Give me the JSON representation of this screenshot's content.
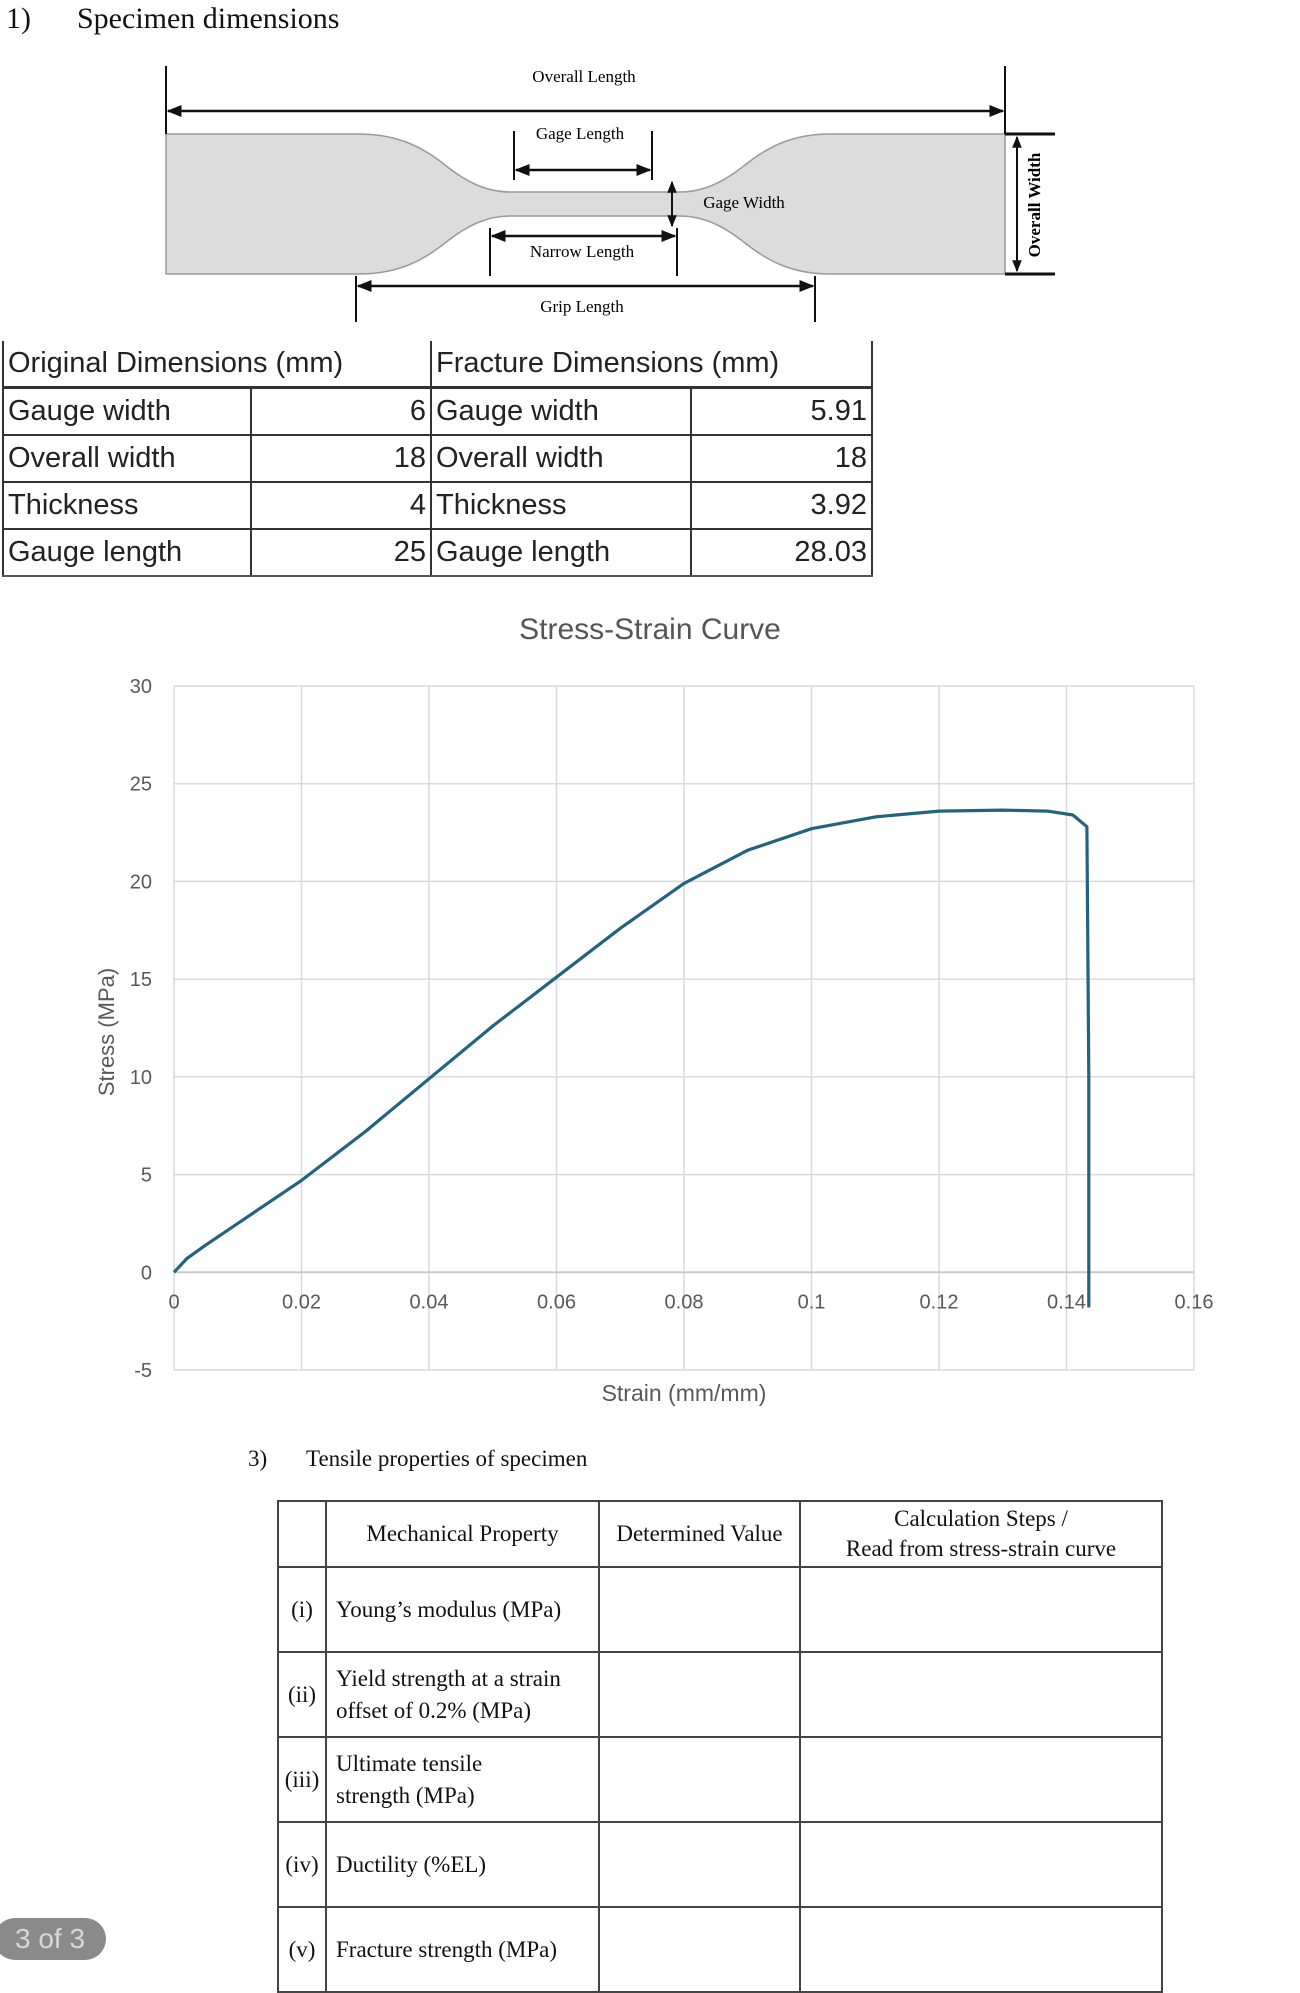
{
  "section1": {
    "number": "1)",
    "title": "Specimen dimensions"
  },
  "diagram": {
    "labels": {
      "overall_length": "Overall Length",
      "gage_length": "Gage Length",
      "gage_width": "Gage Width",
      "narrow_length": "Narrow Length",
      "grip_length": "Grip Length",
      "overall_width": "Overall Width"
    },
    "fill_color": "#dcdcdc"
  },
  "dimensions_table": {
    "original_header": "Original Dimensions (mm)",
    "fracture_header": "Fracture Dimensions (mm)",
    "rows": [
      {
        "label": "Gauge width",
        "original": "6",
        "fracture_label": "Gauge width",
        "fracture": "5.91"
      },
      {
        "label": "Overall width",
        "original": "18",
        "fracture_label": "Overall width",
        "fracture": "18"
      },
      {
        "label": "Thickness",
        "original": "4",
        "fracture_label": "Thickness",
        "fracture": "3.92"
      },
      {
        "label": "Gauge length",
        "original": "25",
        "fracture_label": "Gauge length",
        "fracture": "28.03"
      }
    ]
  },
  "chart_data": {
    "type": "line",
    "title": "Stress-Strain Curve",
    "xlabel": "Strain (mm/mm)",
    "ylabel": "Stress (MPa)",
    "xlim": [
      0,
      0.16
    ],
    "ylim": [
      -5,
      30
    ],
    "x_ticks": [
      "0",
      "0.02",
      "0.04",
      "0.06",
      "0.08",
      "0.1",
      "0.12",
      "0.14",
      "0.16"
    ],
    "y_ticks": [
      "30",
      "25",
      "20",
      "15",
      "10",
      "5",
      "0",
      "-5"
    ],
    "grid": true,
    "legend": "none",
    "series": [
      {
        "name": "Stress-Strain",
        "color": "#24637f",
        "x": [
          0,
          0.002,
          0.005,
          0.01,
          0.02,
          0.03,
          0.04,
          0.05,
          0.06,
          0.07,
          0.08,
          0.09,
          0.1,
          0.11,
          0.12,
          0.13,
          0.137,
          0.141,
          0.1432,
          0.1435,
          0.1435
        ],
        "y": [
          0,
          0.7,
          1.4,
          2.5,
          4.7,
          7.2,
          9.9,
          12.6,
          15.1,
          17.6,
          19.9,
          21.6,
          22.7,
          23.3,
          23.6,
          23.65,
          23.6,
          23.4,
          22.8,
          10.0,
          -1.8
        ]
      }
    ]
  },
  "section3": {
    "number": "3)",
    "title": "Tensile properties of specimen"
  },
  "properties_table": {
    "headers": {
      "index": "",
      "property": "Mechanical Property",
      "value": "Determined Value",
      "calc_line1": "Calculation Steps /",
      "calc_line2": "Read from stress-strain curve"
    },
    "rows": [
      {
        "index": "(i)",
        "line1": "Young’s modulus (MPa)",
        "line2": "",
        "value": "",
        "calc": ""
      },
      {
        "index": "(ii)",
        "line1": "Yield strength at a strain",
        "line2": "offset of 0.2% (MPa)",
        "value": "",
        "calc": ""
      },
      {
        "index": "(iii)",
        "line1": "Ultimate tensile",
        "line2": "strength (MPa)",
        "value": "",
        "calc": ""
      },
      {
        "index": "(iv)",
        "line1": "Ductility (%EL)",
        "line2": "",
        "value": "",
        "calc": ""
      },
      {
        "index": "(v)",
        "line1": "Fracture strength (MPa)",
        "line2": "",
        "value": "",
        "calc": ""
      }
    ]
  },
  "page_indicator": "3 of 3"
}
